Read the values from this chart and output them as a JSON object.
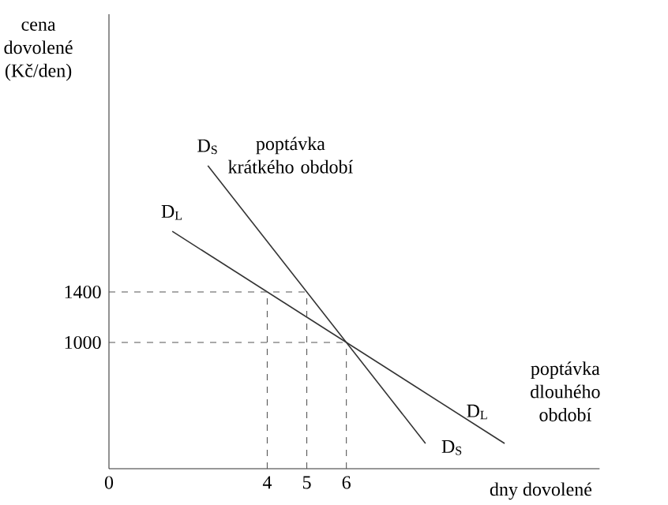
{
  "chart_data": {
    "type": "line",
    "ylabel": "cena dovolené (Kč/den)",
    "xlabel": "dny dovolené",
    "xlim": [
      0,
      12.4
    ],
    "ylim": [
      0,
      3600
    ],
    "xticks": [
      0,
      4,
      5,
      6
    ],
    "yticks": [
      1000,
      1400
    ],
    "marker": "none",
    "series": [
      {
        "name": "D$_{S}$",
        "color": "#333333",
        "line_style": "solid",
        "x": [
          2.5,
          8
        ],
        "values": [
          2400,
          200
        ]
      },
      {
        "name": "D$_{L}$",
        "color": "#333333",
        "line_style": "solid",
        "x": [
          1.6,
          10
        ],
        "values": [
          1880,
          200
        ]
      },
      {
        "color": "#555555",
        "line_style": "dashed",
        "x": [
          0,
          5
        ],
        "values": [
          1400,
          1400
        ]
      },
      {
        "color": "#555555",
        "line_style": "dashed",
        "x": [
          0,
          6
        ],
        "values": [
          1000,
          1000
        ]
      },
      {
        "color": "#555555",
        "line_style": "dashed",
        "x": [
          4,
          4
        ],
        "values": [
          0,
          1400
        ]
      },
      {
        "color": "#555555",
        "line_style": "dashed",
        "x": [
          5,
          5
        ],
        "values": [
          0,
          1400
        ]
      },
      {
        "color": "#555555",
        "line_style": "dashed",
        "x": [
          6,
          6
        ],
        "values": [
          0,
          1000
        ]
      }
    ],
    "annotations": [
      "poptávka krátkého období",
      "poptávka dlouhého období"
    ]
  }
}
